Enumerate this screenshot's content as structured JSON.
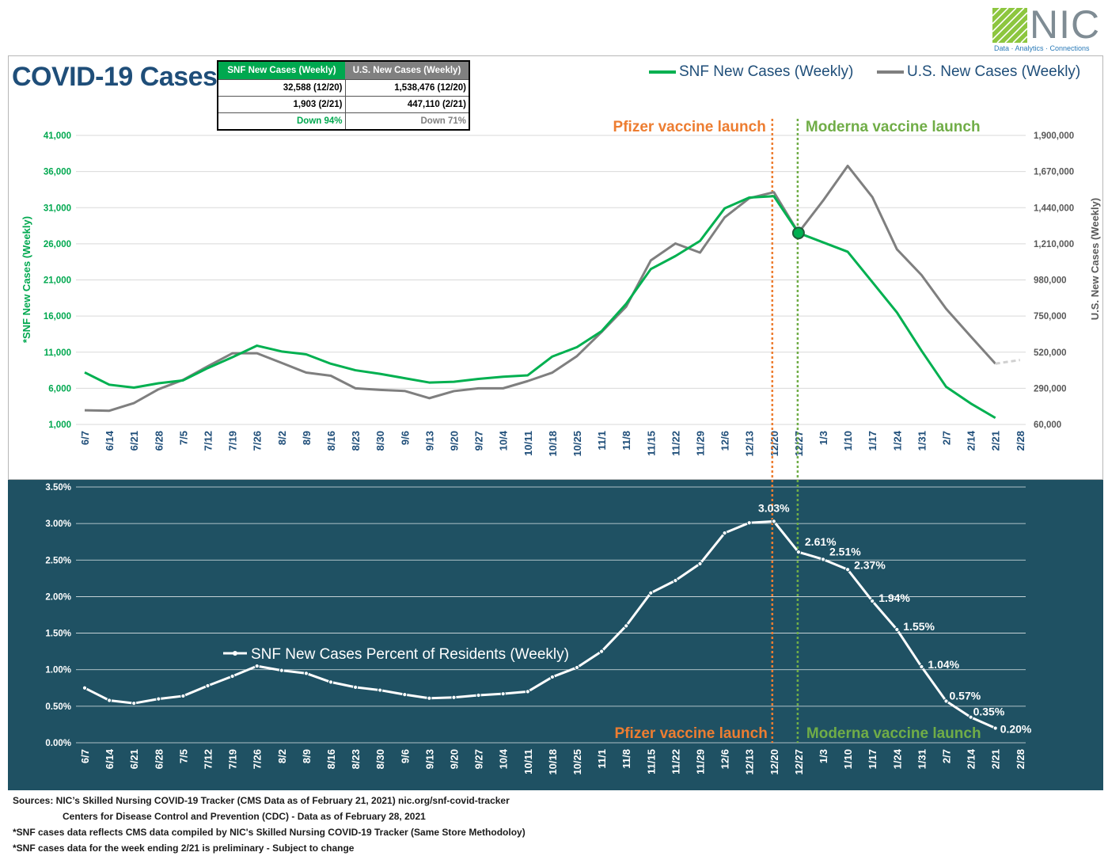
{
  "title": "COVID-19 Cases",
  "logo": {
    "text": "NIC",
    "tagline": "Data · Analytics · Connections"
  },
  "summary_table": {
    "headers": [
      "SNF New Cases (Weekly)",
      "U.S. New Cases (Weekly)"
    ],
    "rows": [
      [
        "32,588 (12/20)",
        "1,538,476 (12/20)"
      ],
      [
        "1,903 (2/21)",
        "447,110 (2/21)"
      ],
      [
        "Down 94%",
        "Down 71%"
      ]
    ]
  },
  "legend": {
    "snf": "SNF New Cases (Weekly)",
    "us": "U.S. New Cases (Weekly)",
    "pct": "SNF New Cases Percent of Residents (Weekly)"
  },
  "colors": {
    "snf": "#00b050",
    "us": "#7f7f7f",
    "pfizer": "#ed7d31",
    "moderna": "#70ad47",
    "title": "#1f4e79",
    "bottom_bg": "#1f5163"
  },
  "annotations": {
    "pfizer": "Pfizer vaccine launch",
    "moderna": "Moderna vaccine launch",
    "pfizer_index": 28,
    "moderna_index": 29
  },
  "chart_data": [
    {
      "type": "line",
      "title": "COVID-19 Cases",
      "categories": [
        "6/7",
        "6/14",
        "6/21",
        "6/28",
        "7/5",
        "7/12",
        "7/19",
        "7/26",
        "8/2",
        "8/9",
        "8/16",
        "8/23",
        "8/30",
        "9/6",
        "9/13",
        "9/20",
        "9/27",
        "10/4",
        "10/11",
        "10/18",
        "10/25",
        "11/1",
        "11/8",
        "11/15",
        "11/22",
        "11/29",
        "12/6",
        "12/13",
        "12/20",
        "12/27",
        "1/3",
        "1/10",
        "1/17",
        "1/24",
        "1/31",
        "2/7",
        "2/14",
        "2/21",
        "2/28"
      ],
      "ylabel_left": "*SNF New Cases (Weekly)",
      "ylabel_right": "U.S. New Cases (Weekly)",
      "ylim_left": [
        1000,
        41000
      ],
      "yticks_left": [
        "1,000",
        "6,000",
        "11,000",
        "16,000",
        "21,000",
        "26,000",
        "31,000",
        "36,000",
        "41,000"
      ],
      "ylim_right": [
        60000,
        1900000
      ],
      "yticks_right": [
        "60,000",
        "290,000",
        "520,000",
        "750,000",
        "980,000",
        "1,210,000",
        "1,440,000",
        "1,670,000",
        "1,900,000"
      ],
      "series": [
        {
          "name": "SNF New Cases (Weekly)",
          "axis": "left",
          "values": [
            8200,
            6500,
            6100,
            6700,
            7100,
            8800,
            10300,
            11900,
            11100,
            10700,
            9400,
            8500,
            8000,
            7400,
            6800,
            6900,
            7300,
            7600,
            7800,
            10400,
            11700,
            13900,
            17700,
            22500,
            24300,
            26400,
            30900,
            32400,
            32588,
            27500,
            26200,
            24900,
            20700,
            16500,
            11200,
            6200,
            3900,
            1903,
            null
          ]
        },
        {
          "name": "U.S. New Cases (Weekly)",
          "axis": "right",
          "values": [
            150000,
            147000,
            196000,
            284000,
            344000,
            430000,
            513000,
            513000,
            452000,
            390000,
            370000,
            290000,
            280000,
            273000,
            227000,
            272000,
            290000,
            290000,
            336000,
            390000,
            495000,
            648000,
            810000,
            1104000,
            1212000,
            1154000,
            1378000,
            1500000,
            1538476,
            1281000,
            1485000,
            1706000,
            1508000,
            1175000,
            1011000,
            796000,
            620000,
            447110,
            470000
          ],
          "note": "2/21 to 2/28 shown as dashed (preliminary)"
        }
      ],
      "highlight_point": {
        "category": "12/27",
        "series": "SNF New Cases (Weekly)"
      }
    },
    {
      "type": "line",
      "title": "SNF New Cases Percent of Residents (Weekly)",
      "categories": [
        "6/7",
        "6/14",
        "6/21",
        "6/28",
        "7/5",
        "7/12",
        "7/19",
        "7/26",
        "8/2",
        "8/9",
        "8/16",
        "8/23",
        "8/30",
        "9/6",
        "9/13",
        "9/20",
        "9/27",
        "10/4",
        "10/11",
        "10/18",
        "10/25",
        "11/1",
        "11/8",
        "11/15",
        "11/22",
        "11/29",
        "12/6",
        "12/13",
        "12/20",
        "12/27",
        "1/3",
        "1/10",
        "1/17",
        "1/24",
        "1/31",
        "2/7",
        "2/14",
        "2/21",
        "2/28"
      ],
      "ylim": [
        0,
        3.5
      ],
      "yticks": [
        "0.00%",
        "0.50%",
        "1.00%",
        "1.50%",
        "2.00%",
        "2.50%",
        "3.00%",
        "3.50%"
      ],
      "series": [
        {
          "name": "SNF New Cases Percent of Residents (Weekly)",
          "values": [
            0.75,
            0.58,
            0.54,
            0.6,
            0.64,
            0.78,
            0.91,
            1.05,
            0.99,
            0.95,
            0.83,
            0.76,
            0.72,
            0.66,
            0.61,
            0.62,
            0.65,
            0.67,
            0.7,
            0.9,
            1.03,
            1.25,
            1.6,
            2.05,
            2.22,
            2.45,
            2.87,
            3.01,
            3.03,
            2.61,
            2.51,
            2.37,
            1.94,
            1.55,
            1.04,
            0.57,
            0.35,
            0.2,
            null
          ]
        }
      ],
      "data_labels": [
        {
          "index": 28,
          "text": "3.03%"
        },
        {
          "index": 29,
          "text": "2.61%"
        },
        {
          "index": 30,
          "text": "2.51%"
        },
        {
          "index": 31,
          "text": "2.37%"
        },
        {
          "index": 32,
          "text": "1.94%"
        },
        {
          "index": 33,
          "text": "1.55%"
        },
        {
          "index": 34,
          "text": "1.04%"
        },
        {
          "index": 35,
          "text": "0.57%"
        },
        {
          "index": 36,
          "text": "0.35%"
        },
        {
          "index": 37,
          "text": "0.20%"
        }
      ]
    }
  ],
  "sources": [
    "Sources:  NIC’s Skilled Nursing COVID-19 Tracker (CMS Data as of February 21, 2021)  nic.org/snf-covid-tracker",
    "Centers for Disease Control and Prevention (CDC) - Data as of February 28, 2021",
    "*SNF cases data reflects CMS data compiled by NIC's Skilled Nursing COVID-19 Tracker (Same Store Methodoloy)",
    "*SNF cases data for the week ending 2/21 is preliminary - Subject to change"
  ]
}
